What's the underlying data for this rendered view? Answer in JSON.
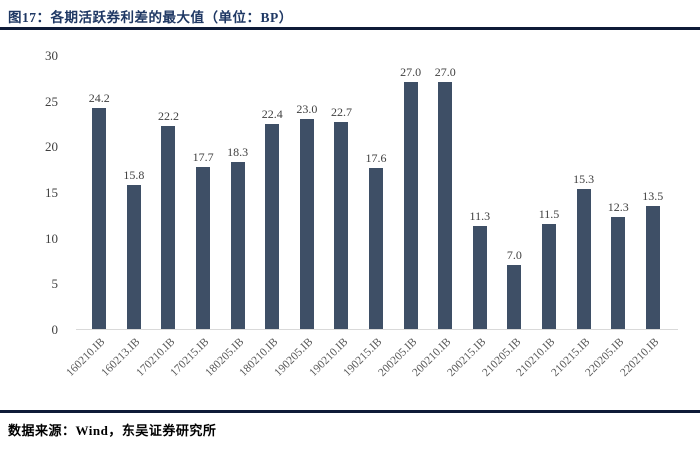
{
  "header": {
    "title": "图17：各期活跃券利差的最大值（单位：BP）"
  },
  "footer": {
    "source": "数据来源：Wind，东吴证券研究所"
  },
  "chart_data": {
    "type": "bar",
    "title": "各期活跃券利差的最大值",
    "unit": "BP",
    "categories": [
      "160210.IB",
      "160213.IB",
      "170210.IB",
      "170215.IB",
      "180205.IB",
      "180210.IB",
      "190205.IB",
      "190210.IB",
      "190215.IB",
      "200205.IB",
      "200210.IB",
      "200215.IB",
      "210205.IB",
      "210210.IB",
      "210215.IB",
      "220205.IB",
      "220210.IB"
    ],
    "values": [
      24.2,
      15.8,
      22.2,
      17.7,
      18.3,
      22.4,
      23.0,
      22.7,
      17.6,
      27.0,
      27.0,
      11.3,
      7.0,
      11.5,
      15.3,
      12.3,
      13.5
    ],
    "ylim": [
      0,
      30
    ],
    "yticks": [
      0,
      5,
      10,
      15,
      20,
      25,
      30
    ],
    "bar_color": "#3E4F66",
    "grid": false,
    "legend": false,
    "value_labels": true,
    "xlabel": "",
    "ylabel": ""
  }
}
